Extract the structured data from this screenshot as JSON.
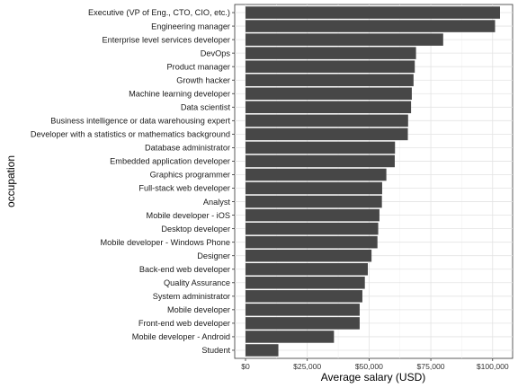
{
  "chart_data": {
    "type": "bar",
    "orientation": "horizontal",
    "xlabel": "Average salary (USD)",
    "ylabel": "occupation",
    "xlim": [
      0,
      107000
    ],
    "xticks": [
      0,
      25000,
      50000,
      75000,
      100000
    ],
    "xtick_labels": [
      "$0",
      "$25,000",
      "$50,000",
      "$75,000",
      "$100,000"
    ],
    "grid": true,
    "bar_color": "#474747",
    "categories": [
      "Executive (VP of Eng., CTO, CIO, etc.)",
      "Engineering manager",
      "Enterprise level services developer",
      "DevOps",
      "Product manager",
      "Growth hacker",
      "Machine learning developer",
      "Data scientist",
      "Business intelligence or data warehousing expert",
      "Developer with a statistics or mathematics background",
      "Database administrator",
      "Embedded application developer",
      "Graphics programmer",
      "Full-stack web developer",
      "Analyst",
      "Mobile developer - iOS",
      "Desktop developer",
      "Mobile developer - Windows Phone",
      "Designer",
      "Back-end web developer",
      "Quality Assurance",
      "System administrator",
      "Mobile developer",
      "Front-end web developer",
      "Mobile developer - Android",
      "Student"
    ],
    "values": [
      103000,
      101000,
      80000,
      69000,
      68500,
      68000,
      67300,
      67000,
      65800,
      65700,
      60500,
      60400,
      57000,
      55300,
      55200,
      54200,
      53700,
      53400,
      51000,
      49500,
      48300,
      47300,
      46200,
      46200,
      35800,
      13300
    ]
  }
}
